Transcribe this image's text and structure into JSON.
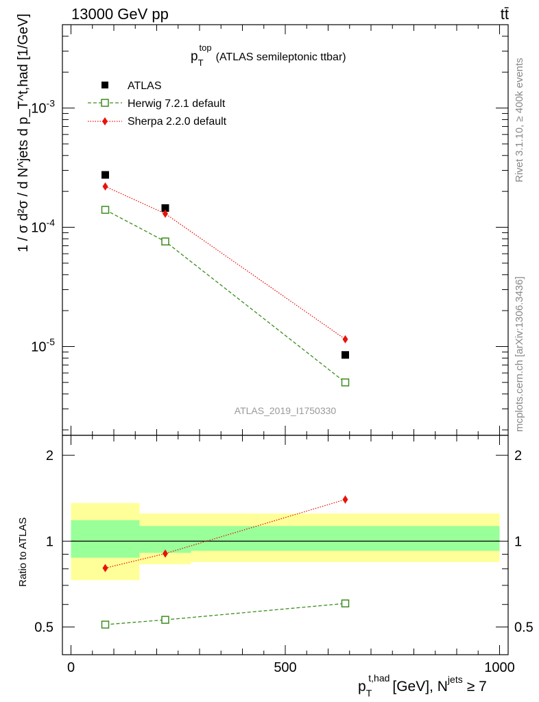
{
  "header": {
    "energy_label": "13000 GeV pp",
    "process_label": "tt̄"
  },
  "side_labels": {
    "rivet": "Rivet 3.1.10, ≥ 400k events",
    "mcplots": "mcplots.cern.ch [arXiv:1306.3436]"
  },
  "chart_data": [
    {
      "panel": "main",
      "type": "scatter",
      "title_main": "p",
      "title_sub": "T",
      "title_sup": "top",
      "title_rest": "(ATLAS semileptonic ttbar)",
      "watermark": "ATLAS_2019_I1750330",
      "ylabel": "1 / σ d²σ / d N^jets d p_T^t,had [1/GeV]",
      "y_scale": "log",
      "ylim": [
        1.8e-06,
        0.005
      ],
      "xlim": [
        -20,
        1020
      ],
      "ytick_labels": [
        {
          "base": "10",
          "exp": "-3",
          "value": 0.001
        },
        {
          "base": "10",
          "exp": "-4",
          "value": 0.0001
        },
        {
          "base": "10",
          "exp": "-5",
          "value": 1e-05
        }
      ],
      "legend": {
        "placement": "top-left"
      },
      "series": [
        {
          "name": "ATLAS",
          "style": "data",
          "color": "#000000",
          "x": [
            80,
            220,
            640
          ],
          "y": [
            0.000275,
            0.000145,
            8.5e-06
          ]
        },
        {
          "name": "Herwig 7.2.1 default",
          "style": "open-square-dashed",
          "color": "#3a8c1e",
          "x": [
            80,
            220,
            640
          ],
          "y": [
            0.00014,
            7.6e-05,
            5e-06
          ]
        },
        {
          "name": "Sherpa 2.2.0 default",
          "style": "diamond-dotted",
          "color": "#e8120c",
          "x": [
            80,
            220,
            640
          ],
          "y": [
            0.00022,
            0.00013,
            1.15e-05
          ]
        }
      ]
    },
    {
      "panel": "ratio",
      "type": "scatter",
      "ylabel": "Ratio to ATLAS",
      "xlabel_main": "p",
      "xlabel_sub": "T",
      "xlabel_sup": "t,had",
      "xlabel_rest": "[GeV], N",
      "xlabel_sup2": "jets",
      "xlabel_tail": "≥ 7",
      "y_scale": "log",
      "ylim": [
        0.4,
        2.35
      ],
      "xlim": [
        -20,
        1020
      ],
      "xtick_labels": [
        {
          "label": "0",
          "value": 0
        },
        {
          "label": "500",
          "value": 500
        },
        {
          "label": "1000",
          "value": 1000
        }
      ],
      "ytick_labels": [
        {
          "label": "2",
          "value": 2
        },
        {
          "label": "1",
          "value": 1
        },
        {
          "label": "0.5",
          "value": 0.5
        }
      ],
      "bands": [
        {
          "x": [
            0,
            160
          ],
          "yellow": [
            0.73,
            1.36
          ],
          "green": [
            0.875,
            1.185
          ]
        },
        {
          "x": [
            160,
            280
          ],
          "yellow": [
            0.83,
            1.25
          ],
          "green": [
            0.91,
            1.13
          ]
        },
        {
          "x": [
            280,
            1000
          ],
          "yellow": [
            0.845,
            1.25
          ],
          "green": [
            0.925,
            1.13
          ]
        }
      ],
      "band_colors": {
        "yellow": "#ffff99",
        "green": "#99ff99"
      },
      "series": [
        {
          "name": "Herwig 7.2.1 default",
          "style": "open-square-dashed",
          "color": "#3a8c1e",
          "x": [
            80,
            220,
            640
          ],
          "y": [
            0.51,
            0.53,
            0.605
          ]
        },
        {
          "name": "Sherpa 2.2.0 default",
          "style": "diamond-dotted",
          "color": "#e8120c",
          "x": [
            80,
            220,
            640
          ],
          "y": [
            0.805,
            0.905,
            1.4
          ],
          "yerr": [
            0,
            0,
            0.045
          ]
        }
      ]
    }
  ]
}
